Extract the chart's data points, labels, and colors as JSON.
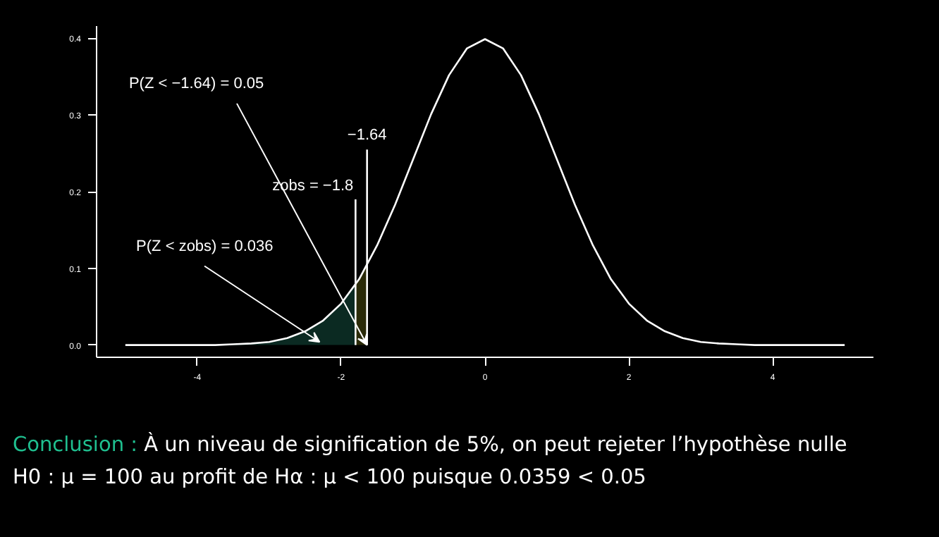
{
  "chart_data": {
    "type": "line",
    "xlim": [
      -5.4,
      5.4
    ],
    "ylim": [
      -0.016,
      0.416
    ],
    "xticks": [
      {
        "value": -4,
        "label": "-4"
      },
      {
        "value": -2,
        "label": "-2"
      },
      0,
      2,
      4
    ],
    "yticks": [
      {
        "value": 0,
        "label": "0.0"
      },
      0.1,
      0.2,
      0.3,
      0.4
    ],
    "grid": false,
    "marker": "none",
    "line_style": "solid",
    "series": [
      {
        "type": "area",
        "color": "#0b2a22",
        "x": [
          -5,
          -4.5,
          -4,
          -3.5,
          -3,
          -2.75,
          -2.5,
          -2.25,
          -2,
          -1.8
        ],
        "values": [
          0,
          0,
          0,
          0.001,
          0.004,
          0.009,
          0.018,
          0.032,
          0.054,
          0.079
        ]
      },
      {
        "type": "area",
        "color": "#2a2a08",
        "x": [
          -1.8,
          -1.64
        ],
        "values": [
          0.079,
          0.104
        ]
      },
      {
        "color": "#ffffff",
        "x": [
          -5,
          -4.75,
          -4.5,
          -4.25,
          -4,
          -3.75,
          -3.5,
          -3.25,
          -3,
          -2.75,
          -2.5,
          -2.25,
          -2,
          -1.75,
          -1.5,
          -1.25,
          -1,
          -0.75,
          -0.5,
          -0.25,
          0,
          0.25,
          0.5,
          0.75,
          1,
          1.25,
          1.5,
          1.75,
          2,
          2.25,
          2.5,
          2.75,
          3,
          3.25,
          3.5,
          3.75,
          4,
          4.25,
          4.5,
          4.75,
          5
        ],
        "values": [
          0,
          0,
          0,
          0,
          0,
          0,
          0.001,
          0.002,
          0.004,
          0.009,
          0.018,
          0.032,
          0.054,
          0.086,
          0.13,
          0.183,
          0.242,
          0.301,
          0.352,
          0.387,
          0.399,
          0.387,
          0.352,
          0.301,
          0.242,
          0.183,
          0.13,
          0.086,
          0.054,
          0.032,
          0.018,
          0.009,
          0.004,
          0.002,
          0.001,
          0,
          0,
          0,
          0,
          0,
          0
        ]
      },
      {
        "type": "line",
        "color": "#ffffff",
        "x": [
          -1.8,
          -1.8
        ],
        "values": [
          0,
          0.19
        ]
      },
      {
        "type": "line",
        "color": "#ffffff",
        "x": [
          -1.64,
          -1.64
        ],
        "values": [
          0,
          0.255
        ]
      }
    ],
    "annotations": [
      {
        "text": "P(Z < −1.64) = 0.05",
        "x": -1.64,
        "y": 0
      },
      {
        "text": "P(Z < zobs) = 0.036",
        "x": -2.3,
        "y": 0.004
      },
      {
        "text": "zobs = −1.8",
        "x": -1.8,
        "y": 0.19
      },
      {
        "text": "−1.64",
        "x": -1.64,
        "y": 0.255
      },
      "Conclusion :",
      "À un niveau de signification de 5%, on peut rejeter l’hypothèse nulle",
      "H0 : μ = 100 au profit de Hα : μ < 100 puisque 0.0359 < 0.05"
    ]
  }
}
